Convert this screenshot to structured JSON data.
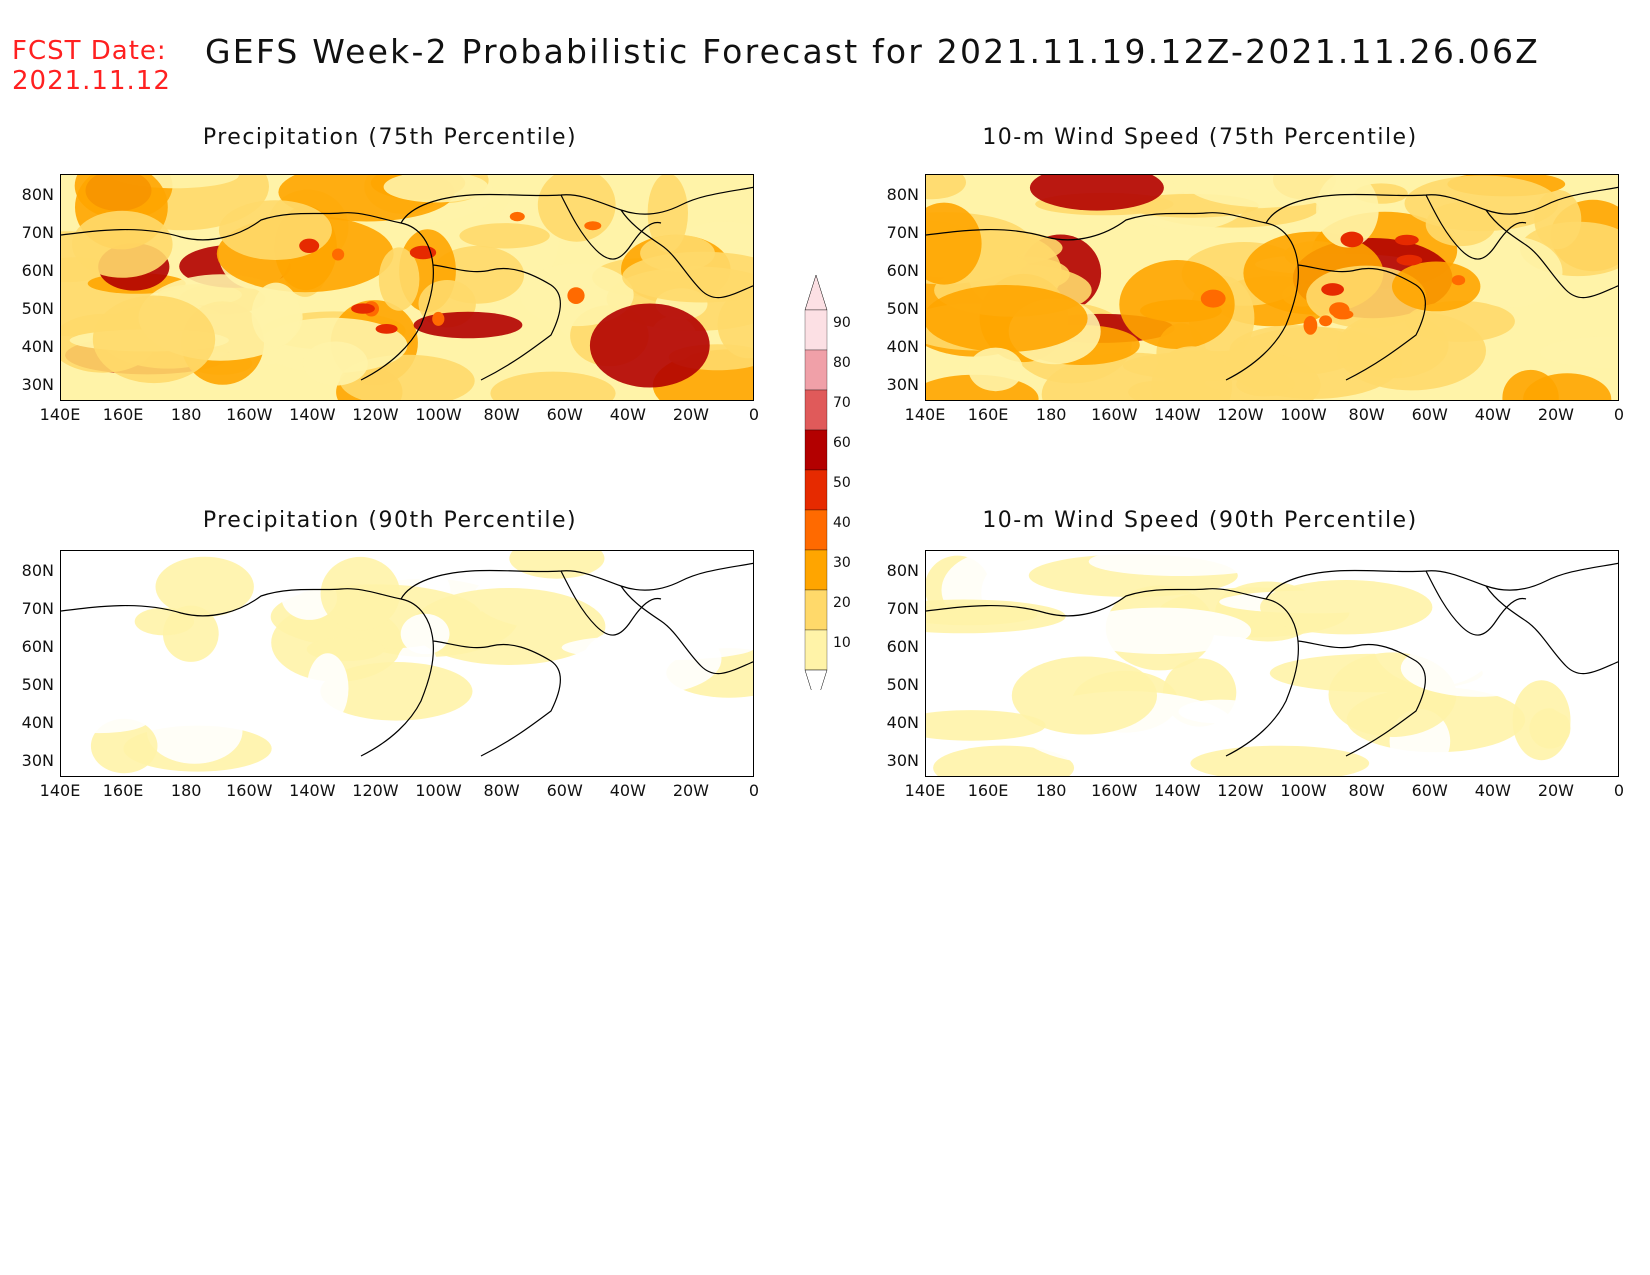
{
  "header": {
    "fcst_label": "FCST Date:",
    "fcst_date": "2021.11.12",
    "title": "GEFS Week-2 Probabilistic Forecast for 2021.11.19.12Z-2021.11.26.06Z"
  },
  "panels": [
    {
      "id": "precip-75",
      "title": "Precipitation (75th Percentile)",
      "intensity": "high"
    },
    {
      "id": "wind-75",
      "title": "10-m Wind Speed (75th Percentile)",
      "intensity": "high"
    },
    {
      "id": "precip-90",
      "title": "Precipitation (90th Percentile)",
      "intensity": "low"
    },
    {
      "id": "wind-90",
      "title": "10-m Wind Speed (90th Percentile)",
      "intensity": "low"
    }
  ],
  "axes": {
    "lat_labels": [
      "80N",
      "70N",
      "60N",
      "50N",
      "40N",
      "30N"
    ],
    "lon_labels": [
      "140E",
      "160E",
      "180",
      "160W",
      "140W",
      "120W",
      "100W",
      "80W",
      "60W",
      "40W",
      "20W",
      "0"
    ]
  },
  "colorbar": {
    "levels": [
      "10",
      "20",
      "30",
      "40",
      "50",
      "60",
      "70",
      "80",
      "90"
    ],
    "colors": [
      "#fff3a8",
      "#ffd96a",
      "#ffa500",
      "#ff6a00",
      "#e62a00",
      "#b30000",
      "#e05a5a",
      "#f0a0a8",
      "#fce0e4"
    ]
  }
}
